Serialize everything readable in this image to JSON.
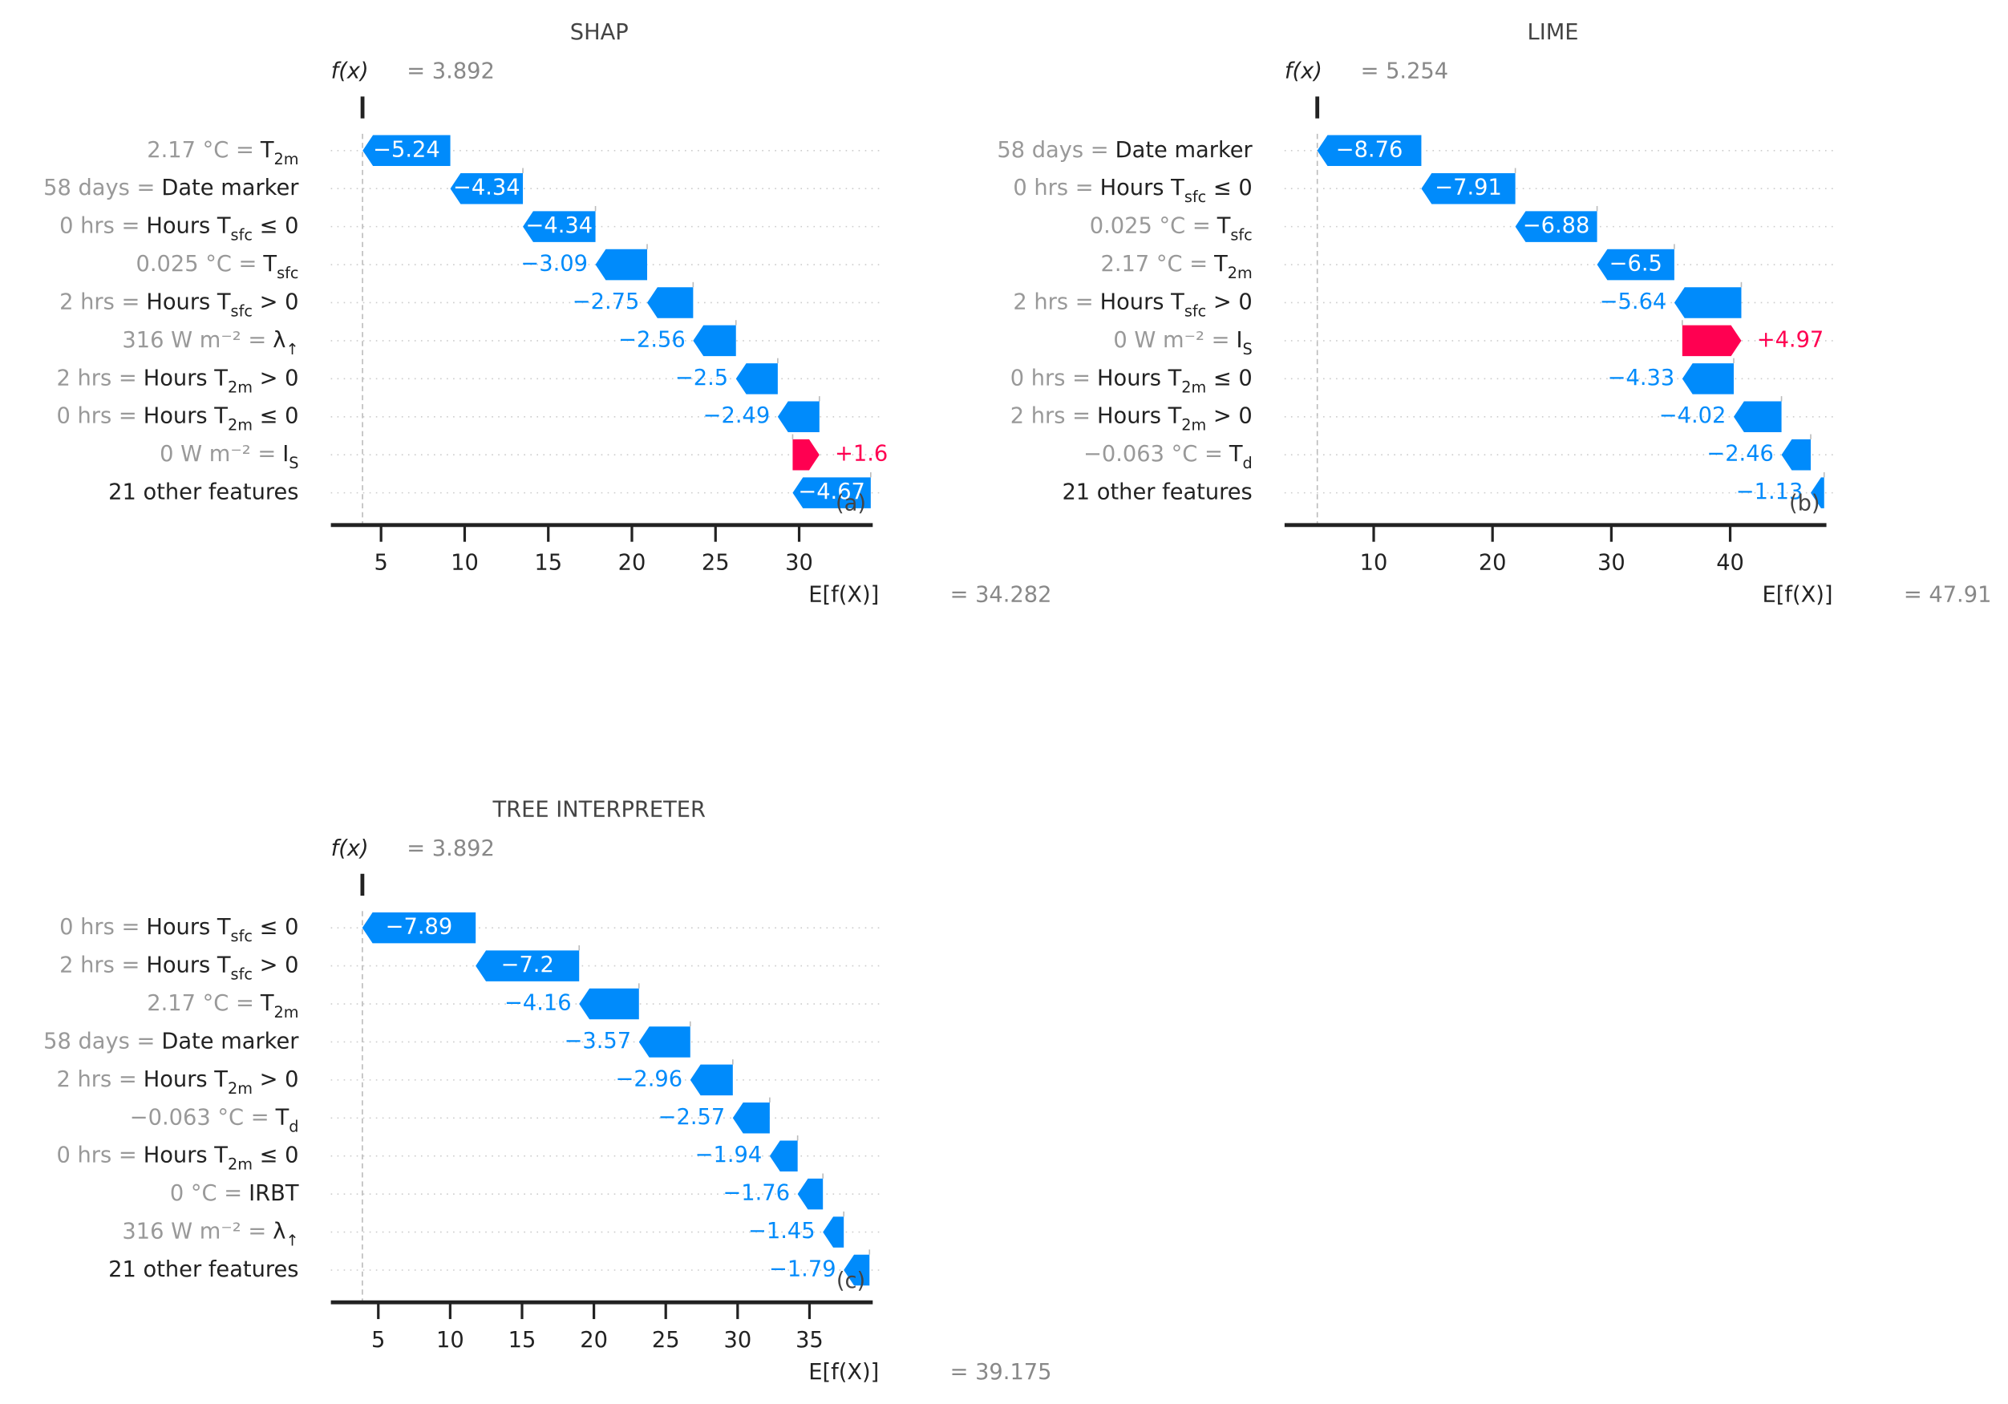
{
  "chart_data": [
    {
      "type": "waterfall",
      "title": "SHAP",
      "panel_label": "(a)",
      "fx_label": "f(x)",
      "fx": {
        "value": 3.892,
        "label": "= 3.892"
      },
      "expected_label": "E[f(X)]",
      "expected": {
        "value": 34.282,
        "label": "= 34.282"
      },
      "feature_values": [
        "2.17 °C =",
        "58 days =",
        "0 hrs =",
        "0.025 °C =",
        "2 hrs =",
        "316 W m⁻² =",
        "2 hrs =",
        "0 hrs =",
        "0 W m⁻² =",
        null
      ],
      "features": [
        [
          "T",
          "2m"
        ],
        [
          "Date marker"
        ],
        [
          "Hours T",
          "sfc",
          " ≤ 0"
        ],
        [
          "T",
          "sfc"
        ],
        [
          "Hours T",
          "sfc",
          " > 0"
        ],
        [
          "λ",
          "↑"
        ],
        [
          "Hours T",
          "2m",
          " > 0"
        ],
        [
          "Hours T",
          "2m",
          " ≤ 0"
        ],
        [
          "I",
          "S"
        ],
        [
          "21 other features"
        ]
      ],
      "values": [
        -5.24,
        -4.34,
        -4.34,
        -3.09,
        -2.75,
        -2.56,
        -2.5,
        -2.49,
        1.6,
        -4.67
      ],
      "value_labels": [
        "−5.24",
        "−4.34",
        "−4.34",
        "−3.09",
        "−2.75",
        "−2.56",
        "−2.5",
        "−2.49",
        "+1.6",
        "−4.67"
      ],
      "xlim": [
        2.0,
        34.4
      ],
      "xticks": [
        5,
        10,
        15,
        20,
        25,
        30
      ],
      "positive_color": "#ff0051",
      "negative_color": "#008bfb"
    },
    {
      "type": "waterfall",
      "title": "LIME",
      "panel_label": "(b)",
      "fx_label": "f(x)",
      "fx": {
        "value": 5.254,
        "label": "= 5.254"
      },
      "expected_label": "E[f(X)]",
      "expected": {
        "value": 47.91,
        "label": "= 47.91"
      },
      "feature_values": [
        "58 days =",
        "0 hrs =",
        "0.025 °C =",
        "2.17 °C =",
        "2 hrs =",
        "0 W m⁻² =",
        "0 hrs =",
        "2 hrs =",
        "−0.063 °C =",
        null
      ],
      "features": [
        [
          "Date marker"
        ],
        [
          "Hours T",
          "sfc",
          " ≤ 0"
        ],
        [
          "T",
          "sfc"
        ],
        [
          "T",
          "2m"
        ],
        [
          "Hours T",
          "sfc",
          " > 0"
        ],
        [
          "I",
          "S"
        ],
        [
          "Hours T",
          "2m",
          " ≤ 0"
        ],
        [
          "Hours T",
          "2m",
          " > 0"
        ],
        [
          "T",
          "d"
        ],
        [
          "21 other features"
        ]
      ],
      "values": [
        -8.76,
        -7.91,
        -6.88,
        -6.5,
        -5.64,
        4.97,
        -4.33,
        -4.02,
        -2.46,
        -1.13
      ],
      "value_labels": [
        "−8.76",
        "−7.91",
        "−6.88",
        "−6.5",
        "−5.64",
        "+4.97",
        "−4.33",
        "−4.02",
        "−2.46",
        "−1.13"
      ],
      "xlim": [
        2.5,
        48.1
      ],
      "xticks": [
        10,
        20,
        30,
        40
      ],
      "positive_color": "#ff0051",
      "negative_color": "#008bfb"
    },
    {
      "type": "waterfall",
      "title": "TREE INTERPRETER",
      "panel_label": "(c)",
      "fx_label": "f(x)",
      "fx": {
        "value": 3.892,
        "label": "= 3.892"
      },
      "expected_label": "E[f(X)]",
      "expected": {
        "value": 39.175,
        "label": "= 39.175"
      },
      "feature_values": [
        "0 hrs =",
        "2 hrs =",
        "2.17 °C =",
        "58 days =",
        "2 hrs =",
        "−0.063 °C =",
        "0 hrs =",
        "0 °C =",
        "316 W m⁻² =",
        null
      ],
      "features": [
        [
          "Hours T",
          "sfc",
          " ≤ 0"
        ],
        [
          "Hours T",
          "sfc",
          " > 0"
        ],
        [
          "T",
          "2m"
        ],
        [
          "Date marker"
        ],
        [
          "Hours T",
          "2m",
          " > 0"
        ],
        [
          "T",
          "d"
        ],
        [
          "Hours T",
          "2m",
          " ≤ 0"
        ],
        [
          "IRBT"
        ],
        [
          "λ",
          "↑"
        ],
        [
          "21 other features"
        ]
      ],
      "values": [
        -7.89,
        -7.2,
        -4.16,
        -3.57,
        -2.96,
        -2.57,
        -1.94,
        -1.76,
        -1.45,
        -1.79
      ],
      "value_labels": [
        "−7.89",
        "−7.2",
        "−4.16",
        "−3.57",
        "−2.96",
        "−2.57",
        "−1.94",
        "−1.76",
        "−1.45",
        "−1.79"
      ],
      "xlim": [
        1.7,
        39.4
      ],
      "xticks": [
        5,
        10,
        15,
        20,
        25,
        30,
        35
      ],
      "positive_color": "#ff0051",
      "negative_color": "#008bfb"
    }
  ]
}
